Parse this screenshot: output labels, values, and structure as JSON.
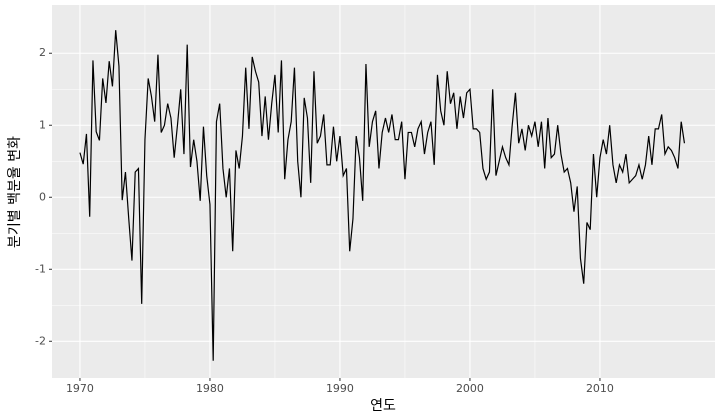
{
  "chart_data": {
    "type": "line",
    "x_label": "연도",
    "y_label": "분기별 백분율 변화",
    "x": [
      1970,
      1970.25,
      1970.5,
      1970.75,
      1971,
      1971.25,
      1971.5,
      1971.75,
      1972,
      1972.25,
      1972.5,
      1972.75,
      1973,
      1973.25,
      1973.5,
      1973.75,
      1974,
      1974.25,
      1974.5,
      1974.75,
      1975,
      1975.25,
      1975.5,
      1975.75,
      1976,
      1976.25,
      1976.5,
      1976.75,
      1977,
      1977.25,
      1977.5,
      1977.75,
      1978,
      1978.25,
      1978.5,
      1978.75,
      1979,
      1979.25,
      1979.5,
      1979.75,
      1980,
      1980.25,
      1980.5,
      1980.75,
      1981,
      1981.25,
      1981.5,
      1981.75,
      1982,
      1982.25,
      1982.5,
      1982.75,
      1983,
      1983.25,
      1983.5,
      1983.75,
      1984,
      1984.25,
      1984.5,
      1984.75,
      1985,
      1985.25,
      1985.5,
      1985.75,
      1986,
      1986.25,
      1986.5,
      1986.75,
      1987,
      1987.25,
      1987.5,
      1987.75,
      1988,
      1988.25,
      1988.5,
      1988.75,
      1989,
      1989.25,
      1989.5,
      1989.75,
      1990,
      1990.25,
      1990.5,
      1990.75,
      1991,
      1991.25,
      1991.5,
      1991.75,
      1992,
      1992.25,
      1992.5,
      1992.75,
      1993,
      1993.25,
      1993.5,
      1993.75,
      1994,
      1994.25,
      1994.5,
      1994.75,
      1995,
      1995.25,
      1995.5,
      1995.75,
      1996,
      1996.25,
      1996.5,
      1996.75,
      1997,
      1997.25,
      1997.5,
      1997.75,
      1998,
      1998.25,
      1998.5,
      1998.75,
      1999,
      1999.25,
      1999.5,
      1999.75,
      2000,
      2000.25,
      2000.5,
      2000.75,
      2001,
      2001.25,
      2001.5,
      2001.75,
      2002,
      2002.25,
      2002.5,
      2002.75,
      2003,
      2003.25,
      2003.5,
      2003.75,
      2004,
      2004.25,
      2004.5,
      2004.75,
      2005,
      2005.25,
      2005.5,
      2005.75,
      2006,
      2006.25,
      2006.5,
      2006.75,
      2007,
      2007.25,
      2007.5,
      2007.75,
      2008,
      2008.25,
      2008.5,
      2008.75,
      2009,
      2009.25,
      2009.5,
      2009.75,
      2010,
      2010.25,
      2010.5,
      2010.75,
      2011,
      2011.25,
      2011.5,
      2011.75,
      2012,
      2012.25,
      2012.5,
      2012.75,
      2013,
      2013.25,
      2013.5,
      2013.75,
      2014,
      2014.25,
      2014.5,
      2014.75,
      2015,
      2015.25,
      2015.5,
      2015.75,
      2016,
      2016.25,
      2016.5
    ],
    "values": [
      0.62,
      0.46,
      0.88,
      -0.27,
      1.9,
      0.91,
      0.79,
      1.65,
      1.31,
      1.89,
      1.54,
      2.32,
      1.82,
      -0.04,
      0.35,
      -0.29,
      -0.88,
      0.35,
      0.4,
      -1.48,
      0.8,
      1.65,
      1.4,
      1.05,
      1.98,
      0.9,
      1.0,
      1.3,
      1.1,
      0.55,
      1.0,
      1.5,
      0.6,
      2.12,
      0.42,
      0.8,
      0.5,
      -0.05,
      0.98,
      0.3,
      -0.1,
      -2.27,
      1.05,
      1.3,
      0.4,
      0.0,
      0.4,
      -0.75,
      0.65,
      0.4,
      0.85,
      1.8,
      0.95,
      1.95,
      1.75,
      1.6,
      0.85,
      1.4,
      0.8,
      1.3,
      1.7,
      0.9,
      1.9,
      0.25,
      0.8,
      1.05,
      1.8,
      0.5,
      0.0,
      1.38,
      1.1,
      0.2,
      1.75,
      0.75,
      0.85,
      1.15,
      0.45,
      0.45,
      0.98,
      0.5,
      0.85,
      0.3,
      0.4,
      -0.75,
      -0.3,
      0.85,
      0.55,
      -0.05,
      1.85,
      0.7,
      1.05,
      1.2,
      0.4,
      0.9,
      1.1,
      0.9,
      1.15,
      0.8,
      0.8,
      1.05,
      0.25,
      0.9,
      0.9,
      0.7,
      0.95,
      1.05,
      0.6,
      0.9,
      1.05,
      0.45,
      1.7,
      1.2,
      1.0,
      1.75,
      1.3,
      1.45,
      0.95,
      1.4,
      1.1,
      1.45,
      1.5,
      0.95,
      0.95,
      0.9,
      0.4,
      0.25,
      0.35,
      1.5,
      0.3,
      0.5,
      0.7,
      0.55,
      0.45,
      1.0,
      1.45,
      0.75,
      0.95,
      0.65,
      1.0,
      0.85,
      1.05,
      0.7,
      1.05,
      0.4,
      1.1,
      0.55,
      0.6,
      1.0,
      0.6,
      0.35,
      0.4,
      0.2,
      -0.2,
      0.15,
      -0.85,
      -1.2,
      -0.35,
      -0.45,
      0.6,
      0.0,
      0.55,
      0.8,
      0.6,
      1.0,
      0.45,
      0.2,
      0.45,
      0.35,
      0.6,
      0.2,
      0.25,
      0.3,
      0.45,
      0.25,
      0.45,
      0.85,
      0.45,
      0.95,
      0.95,
      1.15,
      0.6,
      0.7,
      0.65,
      0.55,
      0.4,
      1.05,
      0.75
    ],
    "color": "#000000",
    "xlim": [
      1967.85,
      2018.85
    ],
    "xticks": [
      1970,
      1980,
      1990,
      2000,
      2010
    ],
    "ylim": [
      -2.51,
      2.67
    ],
    "yticks": [
      -2,
      -1,
      0,
      1,
      2
    ],
    "grid": true
  }
}
